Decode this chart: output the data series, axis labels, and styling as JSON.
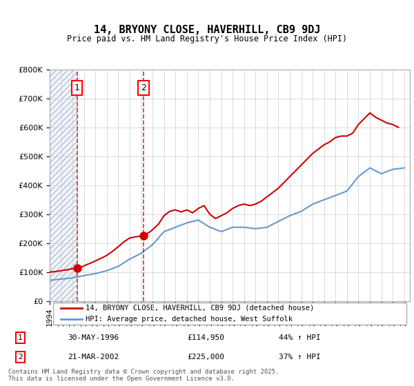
{
  "title": "14, BRYONY CLOSE, HAVERHILL, CB9 9DJ",
  "subtitle": "Price paid vs. HM Land Registry's House Price Index (HPI)",
  "legend_line1": "14, BRYONY CLOSE, HAVERHILL, CB9 9DJ (detached house)",
  "legend_line2": "HPI: Average price, detached house, West Suffolk",
  "sale1_date": "30-MAY-1996",
  "sale1_price": 114950,
  "sale1_label": "44% ↑ HPI",
  "sale1_year": 1996.4,
  "sale2_date": "21-MAR-2002",
  "sale2_price": 225000,
  "sale2_label": "37% ↑ HPI",
  "sale2_year": 2002.2,
  "footer": "Contains HM Land Registry data © Crown copyright and database right 2025.\nThis data is licensed under the Open Government Licence v3.0.",
  "background_color": "#ffffff",
  "grid_color": "#cccccc",
  "hatch_color": "#d0d8e8",
  "red_line_color": "#cc0000",
  "blue_line_color": "#6699cc",
  "ylim": [
    0,
    800000
  ],
  "xlim_start": 1994,
  "xlim_end": 2025.5,
  "hpi_years": [
    1994,
    1995,
    1996,
    1997,
    1998,
    1999,
    2000,
    2001,
    2002,
    2003,
    2004,
    2005,
    2006,
    2007,
    2008,
    2009,
    2010,
    2011,
    2012,
    2013,
    2014,
    2015,
    2016,
    2017,
    2018,
    2019,
    2020,
    2021,
    2022,
    2023,
    2024,
    2025
  ],
  "hpi_values": [
    72000,
    76000,
    80000,
    88000,
    95000,
    105000,
    120000,
    145000,
    165000,
    195000,
    240000,
    255000,
    270000,
    280000,
    255000,
    240000,
    255000,
    255000,
    250000,
    255000,
    275000,
    295000,
    310000,
    335000,
    350000,
    365000,
    380000,
    430000,
    460000,
    440000,
    455000,
    460000
  ],
  "house_years": [
    1994.0,
    1994.5,
    1995.0,
    1995.5,
    1996.0,
    1996.4,
    1996.8,
    1997.2,
    1997.8,
    1998.5,
    1999.0,
    1999.5,
    2000.0,
    2000.5,
    2001.0,
    2001.5,
    2002.2,
    2002.8,
    2003.5,
    2004.0,
    2004.5,
    2005.0,
    2005.5,
    2006.0,
    2006.5,
    2007.0,
    2007.5,
    2008.0,
    2008.5,
    2009.0,
    2009.5,
    2010.0,
    2010.5,
    2011.0,
    2011.5,
    2012.0,
    2012.5,
    2013.0,
    2013.5,
    2014.0,
    2014.5,
    2015.0,
    2015.5,
    2016.0,
    2016.5,
    2017.0,
    2017.5,
    2018.0,
    2018.5,
    2019.0,
    2019.5,
    2020.0,
    2020.5,
    2021.0,
    2021.5,
    2022.0,
    2022.5,
    2023.0,
    2023.5,
    2024.0,
    2024.5
  ],
  "house_values": [
    100000,
    102000,
    105000,
    108000,
    112000,
    114950,
    118000,
    125000,
    135000,
    148000,
    158000,
    172000,
    188000,
    205000,
    218000,
    222000,
    225000,
    240000,
    265000,
    295000,
    310000,
    315000,
    308000,
    315000,
    305000,
    320000,
    330000,
    300000,
    285000,
    295000,
    305000,
    320000,
    330000,
    335000,
    330000,
    335000,
    345000,
    360000,
    375000,
    390000,
    410000,
    430000,
    450000,
    470000,
    490000,
    510000,
    525000,
    540000,
    550000,
    565000,
    570000,
    570000,
    580000,
    610000,
    630000,
    650000,
    635000,
    625000,
    615000,
    610000,
    600000
  ]
}
